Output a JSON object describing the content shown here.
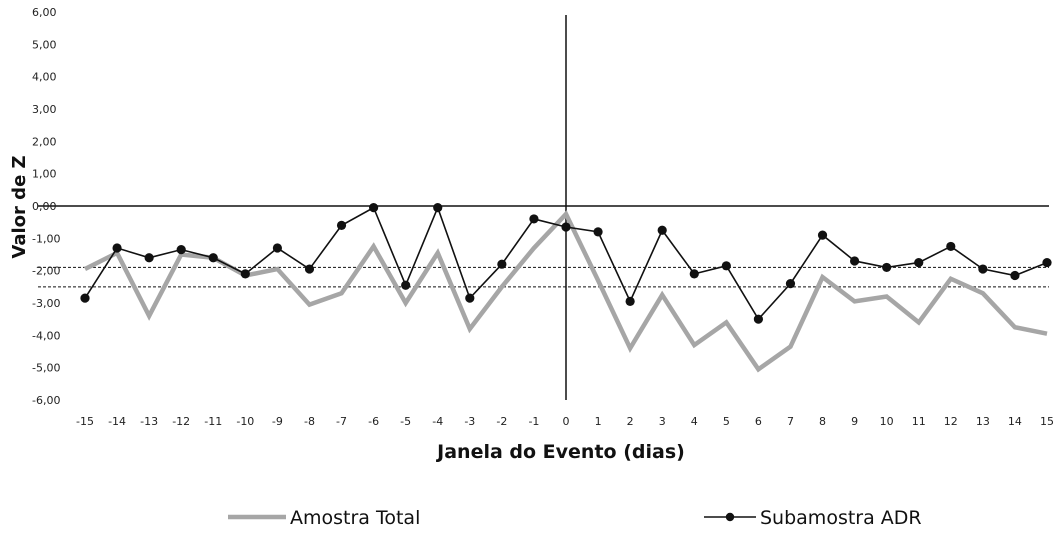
{
  "chart_data": {
    "type": "line",
    "xlabel": "Janela do Evento (dias)",
    "ylabel": "Valor de Z",
    "ylim": [
      -6,
      6
    ],
    "yticks": [
      "6,00",
      "5,00",
      "4,00",
      "3,00",
      "2,00",
      "1,00",
      "0,00",
      "-1,00",
      "-2,00",
      "-3,00",
      "-4,00",
      "-5,00",
      "-6,00"
    ],
    "x": [
      -15,
      -14,
      -13,
      -12,
      -11,
      -10,
      -9,
      -8,
      -7,
      -6,
      -5,
      -4,
      -3,
      -2,
      -1,
      0,
      1,
      2,
      3,
      4,
      5,
      6,
      7,
      8,
      9,
      10,
      11,
      12,
      13,
      14,
      15
    ],
    "series": [
      {
        "name": "Amostra Total",
        "color": "#a6a6a6",
        "marker": "none",
        "values": [
          -1.95,
          -1.45,
          -3.4,
          -1.5,
          -1.6,
          -2.15,
          -1.95,
          -3.05,
          -2.7,
          -1.25,
          -3.0,
          -1.45,
          -3.8,
          -2.5,
          -1.3,
          -0.25,
          -2.3,
          -4.4,
          -2.75,
          -4.3,
          -3.6,
          -5.05,
          -4.35,
          -2.2,
          -2.95,
          -2.8,
          -3.6,
          -2.25,
          -2.7,
          -3.75,
          -3.95
        ]
      },
      {
        "name": "Subamostra ADR",
        "color": "#111111",
        "marker": "circle",
        "values": [
          -2.85,
          -1.3,
          -1.6,
          -1.35,
          -1.6,
          -2.1,
          -1.3,
          -1.95,
          -0.6,
          -0.05,
          -2.45,
          -0.05,
          -2.85,
          -1.8,
          -0.4,
          -0.65,
          -0.8,
          -2.95,
          -0.75,
          -2.1,
          -1.85,
          -3.5,
          -2.4,
          -0.9,
          -1.7,
          -1.9,
          -1.75,
          -1.25,
          -1.95,
          -2.15,
          -1.75
        ]
      }
    ],
    "reference_lines": [
      -1.9,
      -2.5
    ],
    "vertical_line_x": 0,
    "legend": "bottom"
  }
}
